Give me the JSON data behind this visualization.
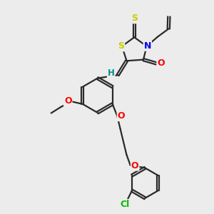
{
  "background_color": "#ececec",
  "bond_color": "#2a2a2a",
  "atom_colors": {
    "S": "#cccc00",
    "N": "#0000ee",
    "O": "#ff0000",
    "Cl": "#00bb00",
    "H": "#009090",
    "C": "#2a2a2a"
  },
  "lw": 1.6,
  "dbo": 0.055,
  "figsize": [
    3.0,
    3.0
  ],
  "dpi": 100
}
